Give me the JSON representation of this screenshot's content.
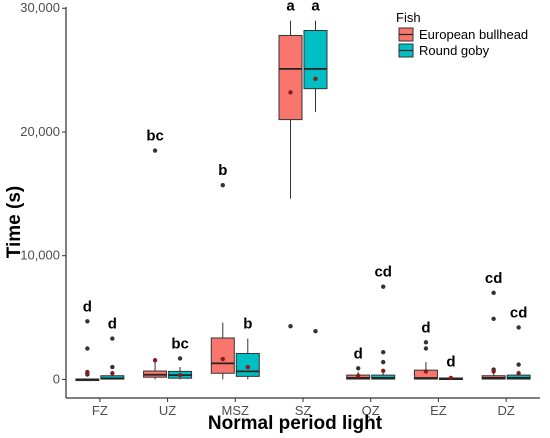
{
  "chart_data": {
    "type": "boxplot",
    "xlabel": "Normal period light",
    "ylabel": "Time (s)",
    "ylim": [
      -1500,
      30100
    ],
    "yticks": [
      0,
      10000,
      20000,
      30000
    ],
    "ytick_labels": [
      "0",
      "10,000",
      "20,000",
      "30,000"
    ],
    "categories": [
      "FZ",
      "UZ",
      "MSZ",
      "SZ",
      "QZ",
      "EZ",
      "DZ"
    ],
    "legend": {
      "title": "Fish",
      "position": "top-right",
      "entries": [
        "European bullhead",
        "Round goby"
      ]
    },
    "grid": false,
    "series": [
      {
        "name": "European bullhead",
        "color": "#F8766D",
        "boxes": [
          {
            "category": "FZ",
            "whisker_low": 0,
            "q1": 0,
            "median": 0,
            "q3": 30,
            "whisker_high": 60,
            "mean": 520,
            "outliers": [
              4700,
              2500,
              600,
              400
            ],
            "sig": "d"
          },
          {
            "category": "UZ",
            "whisker_low": 0,
            "q1": 180,
            "median": 380,
            "q3": 680,
            "whisker_high": 1450,
            "mean": 1550,
            "outliers": [
              18500
            ],
            "sig": "bc"
          },
          {
            "category": "MSZ",
            "whisker_low": 0,
            "q1": 500,
            "median": 1300,
            "q3": 3350,
            "whisker_high": 4600,
            "mean": 1650,
            "outliers": [
              15700
            ],
            "sig": "b"
          },
          {
            "category": "SZ",
            "whisker_low": 14600,
            "q1": 21000,
            "median": 25100,
            "q3": 27800,
            "whisker_high": 29000,
            "mean": 23200,
            "outliers": [
              4300
            ],
            "sig": "a"
          },
          {
            "category": "QZ",
            "whisker_low": 0,
            "q1": 30,
            "median": 120,
            "q3": 350,
            "whisker_high": 600,
            "mean": 300,
            "outliers": [
              900
            ],
            "sig": "d"
          },
          {
            "category": "EZ",
            "whisker_low": 0,
            "q1": 30,
            "median": 110,
            "q3": 750,
            "whisker_high": 1400,
            "mean": 650,
            "outliers": [
              3000,
              2500
            ],
            "sig": "d"
          },
          {
            "category": "DZ",
            "whisker_low": 0,
            "q1": 30,
            "median": 120,
            "q3": 300,
            "whisker_high": 600,
            "mean": 650,
            "outliers": [
              7000,
              4900,
              800
            ],
            "sig": "cd"
          }
        ]
      },
      {
        "name": "Round goby",
        "color": "#00BFC4",
        "boxes": [
          {
            "category": "FZ",
            "whisker_low": 0,
            "q1": 30,
            "median": 80,
            "q3": 300,
            "whisker_high": 600,
            "mean": 500,
            "outliers": [
              3300,
              1000
            ],
            "sig": "d"
          },
          {
            "category": "UZ",
            "whisker_low": 0,
            "q1": 100,
            "median": 350,
            "q3": 650,
            "whisker_high": 1000,
            "mean": 350,
            "outliers": [
              1700
            ],
            "sig": "bc"
          },
          {
            "category": "MSZ",
            "whisker_low": 0,
            "q1": 250,
            "median": 650,
            "q3": 2100,
            "whisker_high": 3300,
            "mean": 1000,
            "outliers": [],
            "sig": "b"
          },
          {
            "category": "SZ",
            "whisker_low": 21600,
            "q1": 23500,
            "median": 25100,
            "q3": 28200,
            "whisker_high": 29000,
            "mean": 24300,
            "outliers": [
              3900
            ],
            "sig": "a"
          },
          {
            "category": "QZ",
            "whisker_low": 0,
            "q1": 30,
            "median": 120,
            "q3": 350,
            "whisker_high": 600,
            "mean": 700,
            "outliers": [
              7500,
              2200,
              1400
            ],
            "sig": "cd"
          },
          {
            "category": "EZ",
            "whisker_low": 0,
            "q1": 0,
            "median": 30,
            "q3": 120,
            "whisker_high": 250,
            "mean": 120,
            "outliers": [],
            "sig": "d"
          },
          {
            "category": "DZ",
            "whisker_low": 0,
            "q1": 30,
            "median": 120,
            "q3": 350,
            "whisker_high": 700,
            "mean": 500,
            "outliers": [
              4200,
              1200
            ],
            "sig": "cd"
          }
        ]
      }
    ]
  }
}
